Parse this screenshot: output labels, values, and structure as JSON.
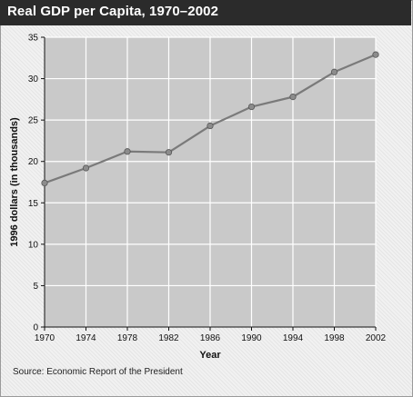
{
  "header": {
    "title": "Real GDP per Capita, 1970–2002"
  },
  "footer": {
    "source": "Source: Economic Report of the President"
  },
  "chart_data": {
    "type": "line",
    "title": "Real GDP per Capita, 1970–2002",
    "xlabel": "Year",
    "ylabel": "1996 dollars (in thousands)",
    "x": [
      1970,
      1974,
      1978,
      1982,
      1986,
      1990,
      1994,
      1998,
      2002
    ],
    "series": [
      {
        "values": [
          17.4,
          19.2,
          21.2,
          21.1,
          24.3,
          26.6,
          27.8,
          30.8,
          32.9
        ]
      }
    ],
    "xlim": [
      1970,
      2002
    ],
    "ylim": [
      0,
      35
    ],
    "xticks": [
      1970,
      1974,
      1978,
      1982,
      1986,
      1990,
      1994,
      1998,
      2002
    ],
    "yticks": [
      0,
      5,
      10,
      15,
      20,
      25,
      30,
      35
    ],
    "grid": true,
    "colors": {
      "line": "#7a7a7a",
      "marker": "#8c8c8c",
      "plot_bg": "#c9c9c9",
      "grid": "#ffffff",
      "title_bar": "#2b2b2b"
    }
  }
}
